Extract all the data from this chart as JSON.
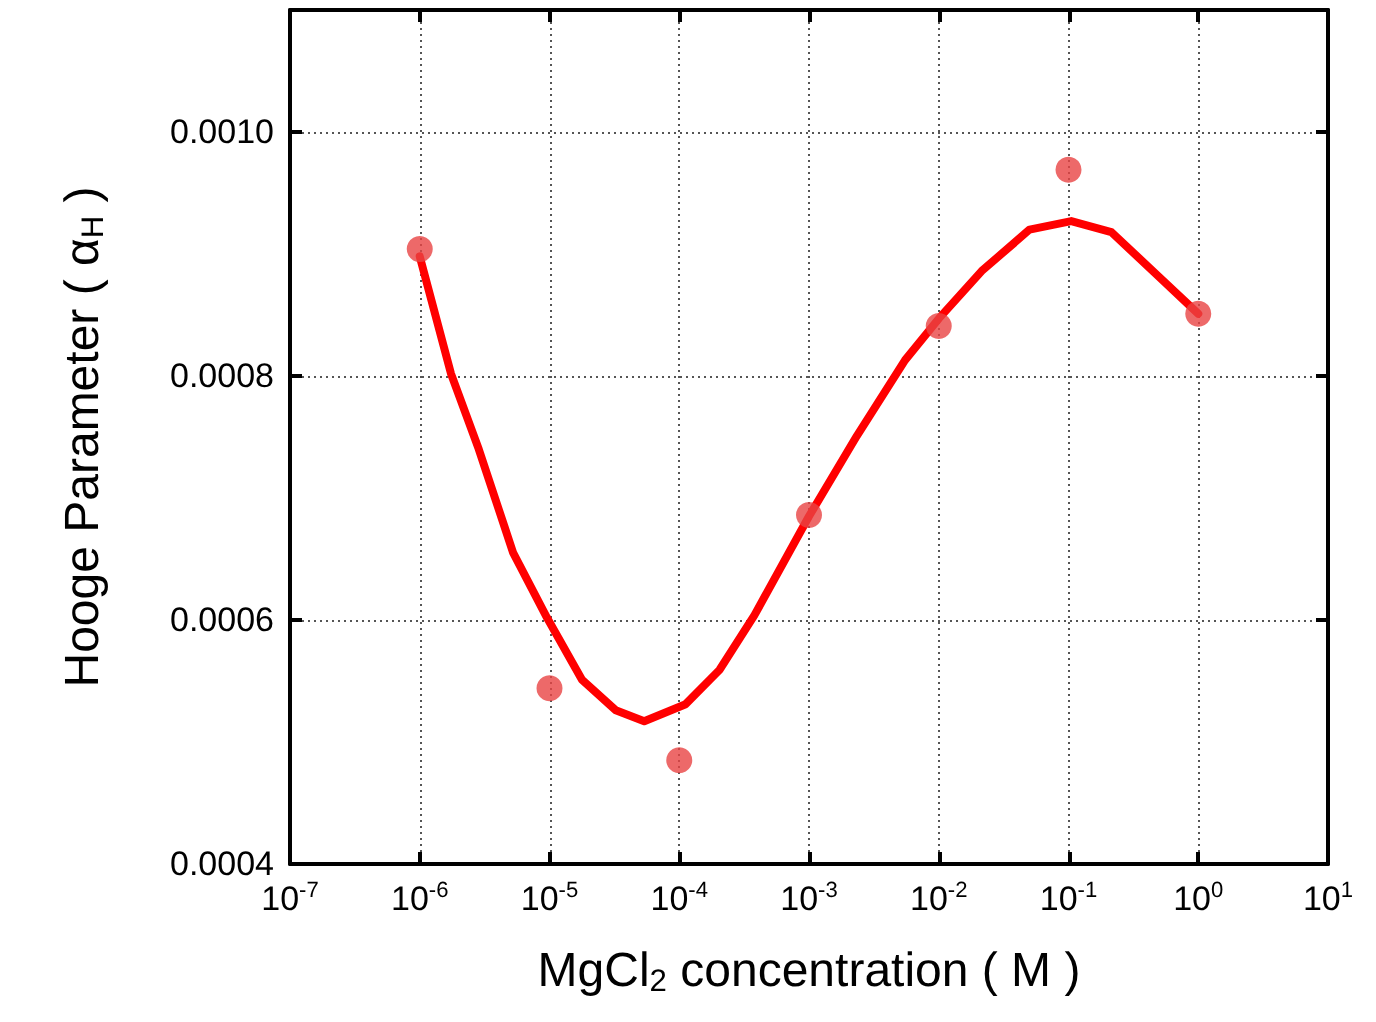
{
  "chart_data": {
    "type": "scatter",
    "xlabel": "MgCl$_{2}$ concentration ( M )",
    "ylabel": "Hooge Parameter ( α$_{H}$ )",
    "log": "x",
    "grid": true,
    "marker": "circle",
    "xlim": [
      1e-07,
      10
    ],
    "xticks": [
      {
        "value": 1e-07,
        "label": "10$^{-7}$"
      },
      {
        "value": 1e-06,
        "label": "10$^{-6}$"
      },
      {
        "value": 1e-05,
        "label": "10$^{-5}$"
      },
      {
        "value": 0.0001,
        "label": "10$^{-4}$"
      },
      {
        "value": 0.001,
        "label": "10$^{-3}$"
      },
      {
        "value": 0.01,
        "label": "10$^{-2}$"
      },
      {
        "value": 0.1,
        "label": "10$^{-1}$"
      },
      {
        "value": 1,
        "label": "10$^{0}$"
      },
      {
        "value": 10,
        "label": "10$^{1}$"
      }
    ],
    "ylim": [
      0.0004,
      0.0011
    ],
    "yticks": [
      {
        "value": 0.0004,
        "label": "0.0004"
      },
      {
        "value": 0.0006,
        "label": "0.0006"
      },
      {
        "value": 0.0008,
        "label": "0.0008"
      },
      {
        "value": 0.001,
        "label": "0.0010"
      }
    ],
    "series": [
      {
        "color": "#e84343",
        "x": [
          1e-06,
          1e-05,
          0.0001,
          0.001,
          0.01,
          0.1,
          1
        ],
        "values": [
          0.000904,
          0.000544,
          0.000485,
          0.000686,
          0.000841,
          0.000969,
          0.000851
        ]
      },
      {
        "type": "line",
        "color": "#ff0000",
        "marker": "none",
        "line_style": "solid",
        "x": [
          1e-06,
          1.74e-06,
          2.85e-06,
          5.25e-06,
          9.55e-06,
          1.78e-05,
          3.24e-05,
          5.37e-05,
          0.000112,
          0.000204,
          0.00038,
          0.001,
          0.00234,
          0.0055,
          0.01,
          0.0214,
          0.0501,
          0.105,
          0.214,
          0.501,
          1
        ],
        "values": [
          0.000898,
          0.000802,
          0.00074,
          0.000655,
          0.000602,
          0.000551,
          0.000526,
          0.000517,
          0.000531,
          0.000559,
          0.000604,
          0.000685,
          0.000751,
          0.000813,
          0.000847,
          0.000886,
          0.00092,
          0.000927,
          0.000918,
          0.000881,
          0.000851
        ]
      }
    ]
  }
}
